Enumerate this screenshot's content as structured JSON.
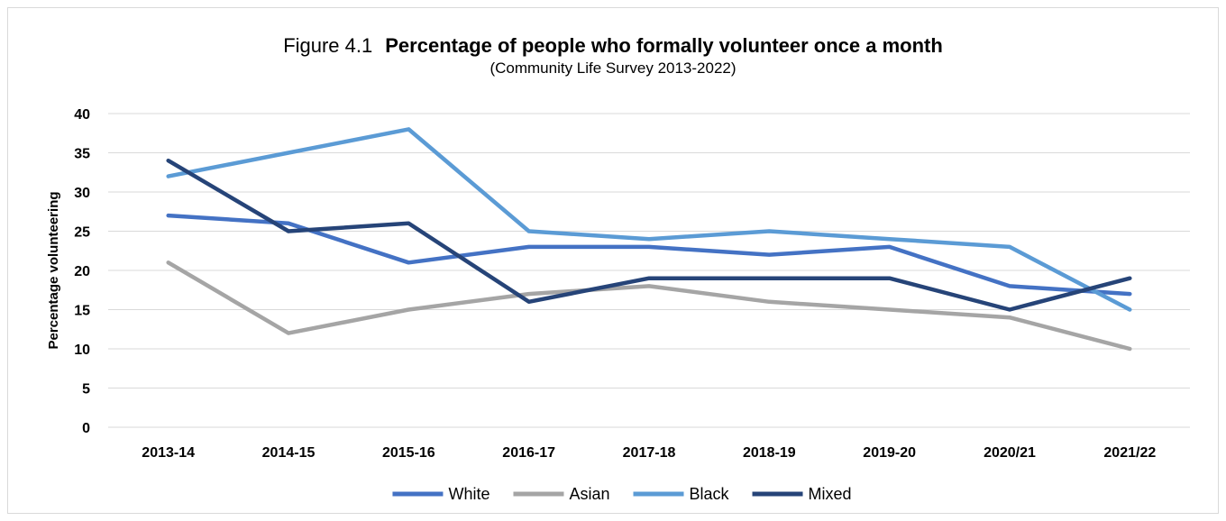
{
  "chart_data": {
    "type": "line",
    "title_prefix": "Figure 4.1",
    "title": "Percentage of people who formally volunteer once a month",
    "subtitle": "(Community Life Survey 2013-2022)",
    "xlabel": "",
    "ylabel": "Percentage volunteering",
    "ylim": [
      0,
      40
    ],
    "yticks": [
      0,
      5,
      10,
      15,
      20,
      25,
      30,
      35,
      40
    ],
    "grid": true,
    "legend_position": "bottom",
    "categories": [
      "2013-14",
      "2014-15",
      "2015-16",
      "2016-17",
      "2017-18",
      "2018-19",
      "2019-20",
      "2020/21",
      "2021/22"
    ],
    "series": [
      {
        "name": "White",
        "color": "#4472c4",
        "values": [
          27,
          26,
          21,
          23,
          23,
          22,
          23,
          18,
          17
        ]
      },
      {
        "name": "Asian",
        "color": "#a5a5a5",
        "values": [
          21,
          12,
          15,
          17,
          18,
          16,
          15,
          14,
          10
        ]
      },
      {
        "name": "Black",
        "color": "#5b9bd5",
        "values": [
          32,
          35,
          38,
          25,
          24,
          25,
          24,
          23,
          15
        ]
      },
      {
        "name": "Mixed",
        "color": "#264478",
        "values": [
          34,
          25,
          26,
          16,
          19,
          19,
          19,
          15,
          19
        ]
      }
    ]
  }
}
